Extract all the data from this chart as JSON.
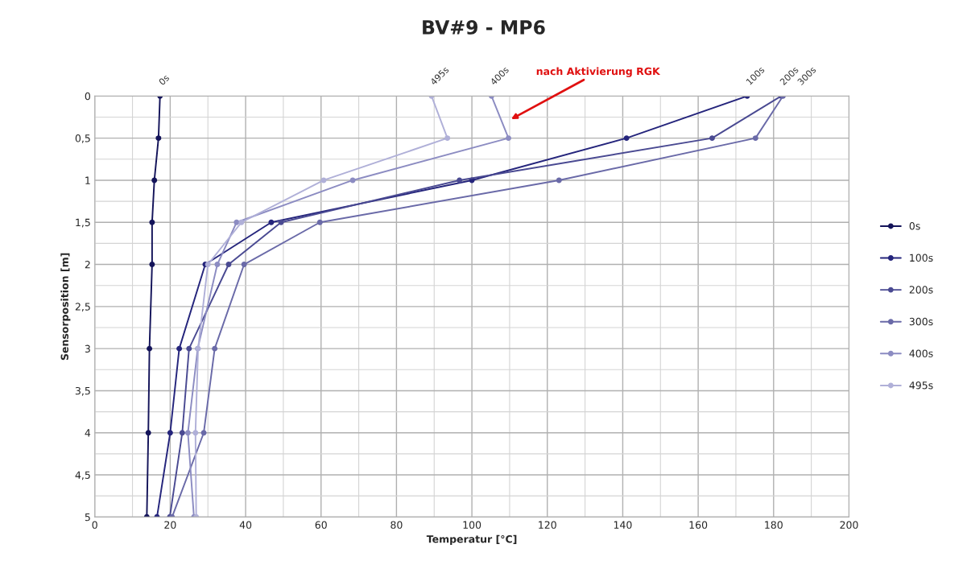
{
  "chart_data": {
    "type": "line",
    "title": "BV#9 - MP6",
    "xlabel": "Temperatur [°C]",
    "ylabel": "Sensorposition [m]",
    "xlim": [
      0,
      200
    ],
    "xticks": [
      0,
      20,
      40,
      60,
      80,
      100,
      120,
      140,
      160,
      180,
      200
    ],
    "ylim": [
      5,
      0
    ],
    "yticks": [
      0,
      {
        "value": 0.5,
        "label": "0,5"
      },
      1,
      {
        "value": 1.5,
        "label": "1,5"
      },
      2,
      {
        "value": 2.5,
        "label": "2,5"
      },
      3,
      {
        "value": 3.5,
        "label": "3,5"
      },
      4,
      {
        "value": 4.5,
        "label": "4,5"
      },
      5
    ],
    "grid": true,
    "legend": "right",
    "marker": "circle",
    "line_style": "solid",
    "series": [
      {
        "name": "0s",
        "color": "#14145a",
        "x": [
          17.3,
          16.9,
          15.8,
          15.2,
          15.2,
          14.5,
          14.2,
          13.8
        ],
        "values": [
          0,
          0.5,
          1,
          1.5,
          2,
          3,
          4,
          5
        ]
      },
      {
        "name": "100s",
        "color": "#25257c",
        "x": [
          173,
          141,
          100,
          46.8,
          29.3,
          22.4,
          20.0,
          16.5
        ],
        "values": [
          0,
          0.5,
          1,
          1.5,
          2,
          3,
          4,
          5
        ]
      },
      {
        "name": "200s",
        "color": "#4a4a92",
        "x": [
          182,
          163.7,
          96.7,
          49.4,
          35.5,
          25.0,
          23.2,
          19.9
        ],
        "values": [
          0,
          0.5,
          1,
          1.5,
          2,
          3,
          4,
          5
        ]
      },
      {
        "name": "300s",
        "color": "#6a6aa8",
        "x": [
          182.5,
          175.2,
          123.1,
          59.7,
          39.6,
          31.8,
          28.9,
          20.5
        ],
        "values": [
          0,
          0.5,
          1,
          1.5,
          2,
          3,
          4,
          5
        ]
      },
      {
        "name": "400s",
        "color": "#8c8cc2",
        "x": [
          105.2,
          109.7,
          68.4,
          37.6,
          32.5,
          27.3,
          24.7,
          26.3
        ],
        "values": [
          0,
          0.5,
          1,
          1.5,
          2,
          3,
          4,
          5
        ]
      },
      {
        "name": "495s",
        "color": "#b0b0d8",
        "x": [
          89.3,
          93.5,
          60.7,
          38.9,
          30.0,
          27.4,
          26.7,
          26.9
        ],
        "values": [
          0,
          0.5,
          1,
          1.5,
          2,
          3,
          4,
          5
        ]
      }
    ],
    "annotations": [
      {
        "text": "0s",
        "x": 17.3,
        "y": 0
      },
      {
        "text": "495s",
        "x": 89.3,
        "y": 0
      },
      {
        "text": "400s",
        "x": 105.2,
        "y": 0
      },
      {
        "text": "100s",
        "x": 173,
        "y": 0
      },
      {
        "text": "200s",
        "x": 182,
        "y": 0
      },
      {
        "text": "300s",
        "x": 182.5,
        "y": 0
      },
      "nach Aktivierung RGK"
    ]
  }
}
